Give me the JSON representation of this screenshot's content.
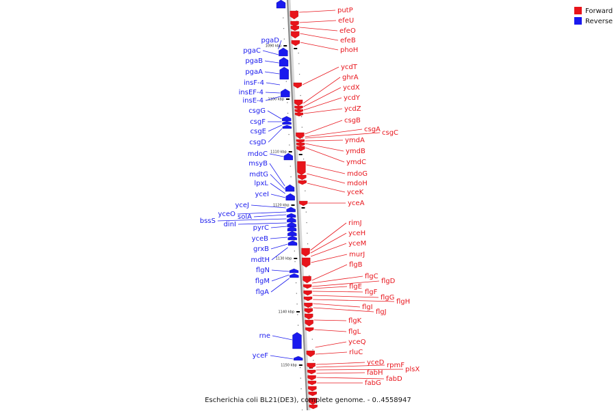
{
  "caption": "Escherichia coli BL21(DE3), complete genome. - 0..4558947",
  "legend": [
    {
      "label": "Forward",
      "color": "#e8141b"
    },
    {
      "label": "Reverse",
      "color": "#1a1aee"
    }
  ],
  "ticks": [
    "1090 kbp",
    "1100 kbp",
    "1110 kbp",
    "1120 kbp",
    "1130 kbp",
    "1140 kbp",
    "1150 kbp"
  ],
  "forward_genes": [
    "putP",
    "efeU",
    "efeO",
    "efeB",
    "phoH",
    "ycdT",
    "ghrA",
    "ycdX",
    "ycdY",
    "ycdZ",
    "csgB",
    "csgA",
    "csgC",
    "ymdA",
    "ymdB",
    "ymdC",
    "mdoG",
    "mdoH",
    "yceK",
    "yceA",
    "rimJ",
    "yceH",
    "yceM",
    "murJ",
    "flgB",
    "flgC",
    "flgD",
    "flgE",
    "flgF",
    "flgG",
    "flgH",
    "flgI",
    "flgJ",
    "flgK",
    "flgL",
    "yceQ",
    "rluC",
    "yceD",
    "rpmF",
    "plsX",
    "fabH",
    "fabD",
    "fabG"
  ],
  "reverse_genes": [
    "pgaD",
    "pgaC",
    "pgaB",
    "pgaA",
    "insF-4",
    "insEF-4",
    "insE-4",
    "csgG",
    "csgF",
    "csgE",
    "csgD",
    "mdoC",
    "msyB",
    "mdtG",
    "lpxL",
    "yceI",
    "yceJ",
    "yceO",
    "solA",
    "bssS",
    "dinI",
    "pyrC",
    "yceB",
    "grxB",
    "mdtH",
    "flgN",
    "flgM",
    "flgA",
    "rne",
    "yceF"
  ]
}
